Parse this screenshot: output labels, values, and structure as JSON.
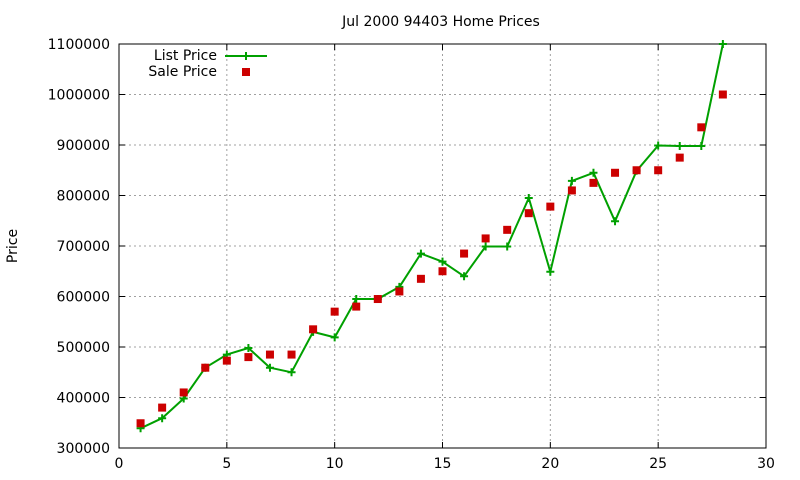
{
  "chart_data": {
    "type": "line",
    "title": "Jul 2000 94403 Home Prices",
    "xlabel": "",
    "ylabel": "Price",
    "xlim": [
      0,
      30
    ],
    "ylim": [
      300000,
      1100000
    ],
    "xticks": [
      "0",
      "5",
      "10",
      "15",
      "20",
      "25",
      "30"
    ],
    "yticks": [
      "300000",
      "400000",
      "500000",
      "600000",
      "700000",
      "800000",
      "900000",
      "1000000",
      "1100000"
    ],
    "grid": true,
    "legend_position": "top-left",
    "series": [
      {
        "name": "List Price",
        "style": "line-with-plus-markers",
        "color": "#00a000",
        "x": [
          1,
          2,
          3,
          4,
          5,
          6,
          7,
          8,
          9,
          10,
          11,
          12,
          13,
          14,
          15,
          16,
          17,
          18,
          19,
          20,
          21,
          22,
          23,
          24,
          25,
          26,
          27,
          28
        ],
        "y": [
          339000,
          359000,
          398000,
          459000,
          485000,
          498000,
          459000,
          450000,
          530000,
          519000,
          595000,
          595000,
          619000,
          685000,
          669000,
          640000,
          699000,
          699000,
          795000,
          649000,
          829000,
          845000,
          749000,
          849000,
          899000,
          898000,
          898000,
          1100000
        ]
      },
      {
        "name": "Sale Price",
        "style": "square-markers",
        "color": "#cc0000",
        "x": [
          1,
          2,
          3,
          4,
          5,
          6,
          7,
          8,
          9,
          10,
          11,
          12,
          13,
          14,
          15,
          16,
          17,
          18,
          19,
          20,
          21,
          22,
          23,
          24,
          25,
          26,
          27,
          28
        ],
        "y": [
          349000,
          380000,
          410000,
          459000,
          473000,
          480000,
          485000,
          485000,
          535000,
          570000,
          580000,
          595000,
          610000,
          635000,
          650000,
          685000,
          715000,
          732000,
          765000,
          778000,
          810000,
          825000,
          845000,
          850000,
          850000,
          875000,
          935000,
          1000000
        ]
      }
    ]
  }
}
